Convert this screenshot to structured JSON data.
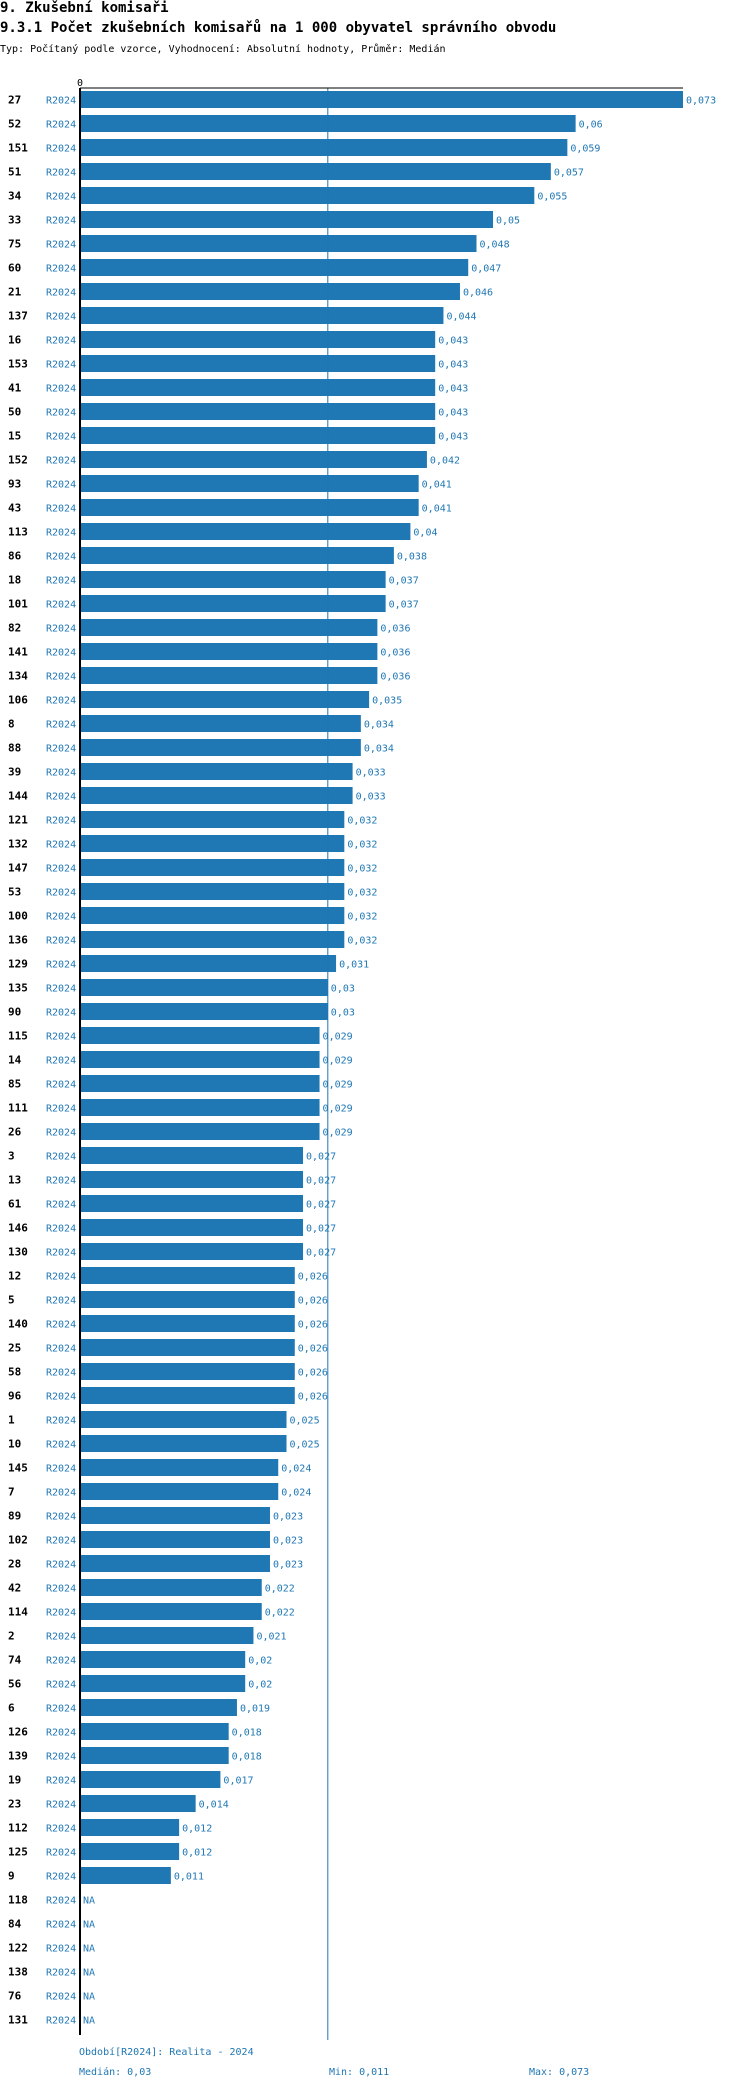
{
  "header": {
    "section": "9. Zkušební komisaři",
    "title": "9.3.1 Počet zkušebních komisařů na 1 000 obyvatel správního obvodu",
    "subtitle": "Typ: Počítaný podle vzorce, Vyhodnocení: Absolutní hodnoty, Průměr: Medián"
  },
  "chart_data": {
    "type": "bar",
    "orientation": "horizontal",
    "zero_label": "0",
    "period_label": "R2024",
    "median": 0.03,
    "xlim": [
      0,
      0.073
    ],
    "categories": [
      "27",
      "52",
      "151",
      "51",
      "34",
      "33",
      "75",
      "60",
      "21",
      "137",
      "16",
      "153",
      "41",
      "50",
      "15",
      "152",
      "93",
      "43",
      "113",
      "86",
      "18",
      "101",
      "82",
      "141",
      "134",
      "106",
      "8",
      "88",
      "39",
      "144",
      "121",
      "132",
      "147",
      "53",
      "100",
      "136",
      "129",
      "135",
      "90",
      "115",
      "14",
      "85",
      "111",
      "26",
      "3",
      "13",
      "61",
      "146",
      "130",
      "12",
      "5",
      "140",
      "25",
      "58",
      "96",
      "1",
      "10",
      "145",
      "7",
      "89",
      "102",
      "28",
      "42",
      "114",
      "2",
      "74",
      "56",
      "6",
      "126",
      "139",
      "19",
      "23",
      "112",
      "125",
      "9",
      "118",
      "84",
      "122",
      "138",
      "76",
      "131"
    ],
    "values": [
      0.073,
      0.06,
      0.059,
      0.057,
      0.055,
      0.05,
      0.048,
      0.047,
      0.046,
      0.044,
      0.043,
      0.043,
      0.043,
      0.043,
      0.043,
      0.042,
      0.041,
      0.041,
      0.04,
      0.038,
      0.037,
      0.037,
      0.036,
      0.036,
      0.036,
      0.035,
      0.034,
      0.034,
      0.033,
      0.033,
      0.032,
      0.032,
      0.032,
      0.032,
      0.032,
      0.032,
      0.031,
      0.03,
      0.03,
      0.029,
      0.029,
      0.029,
      0.029,
      0.029,
      0.027,
      0.027,
      0.027,
      0.027,
      0.027,
      0.026,
      0.026,
      0.026,
      0.026,
      0.026,
      0.026,
      0.025,
      0.025,
      0.024,
      0.024,
      0.023,
      0.023,
      0.023,
      0.022,
      0.022,
      0.021,
      0.02,
      0.02,
      0.019,
      0.018,
      0.018,
      0.017,
      0.014,
      0.012,
      0.012,
      0.011,
      null,
      null,
      null,
      null,
      null,
      null
    ],
    "value_labels": [
      "0,073",
      "0,06",
      "0,059",
      "0,057",
      "0,055",
      "0,05",
      "0,048",
      "0,047",
      "0,046",
      "0,044",
      "0,043",
      "0,043",
      "0,043",
      "0,043",
      "0,043",
      "0,042",
      "0,041",
      "0,041",
      "0,04",
      "0,038",
      "0,037",
      "0,037",
      "0,036",
      "0,036",
      "0,036",
      "0,035",
      "0,034",
      "0,034",
      "0,033",
      "0,033",
      "0,032",
      "0,032",
      "0,032",
      "0,032",
      "0,032",
      "0,032",
      "0,031",
      "0,03",
      "0,03",
      "0,029",
      "0,029",
      "0,029",
      "0,029",
      "0,029",
      "0,027",
      "0,027",
      "0,027",
      "0,027",
      "0,027",
      "0,026",
      "0,026",
      "0,026",
      "0,026",
      "0,026",
      "0,026",
      "0,025",
      "0,025",
      "0,024",
      "0,024",
      "0,023",
      "0,023",
      "0,023",
      "0,022",
      "0,022",
      "0,021",
      "0,02",
      "0,02",
      "0,019",
      "0,018",
      "0,018",
      "0,017",
      "0,014",
      "0,012",
      "0,012",
      "0,011",
      "NA",
      "NA",
      "NA",
      "NA",
      "NA",
      "NA"
    ],
    "colors": {
      "bar": "#1f77b4",
      "axis": "#000000",
      "median": "#1f77b4",
      "label": "#1f77b4"
    }
  },
  "footer": {
    "period": "Období[R2024]: Realita - 2024",
    "median": "Medián: 0,03",
    "min": "Min: 0,011",
    "max": "Max: 0,073"
  }
}
